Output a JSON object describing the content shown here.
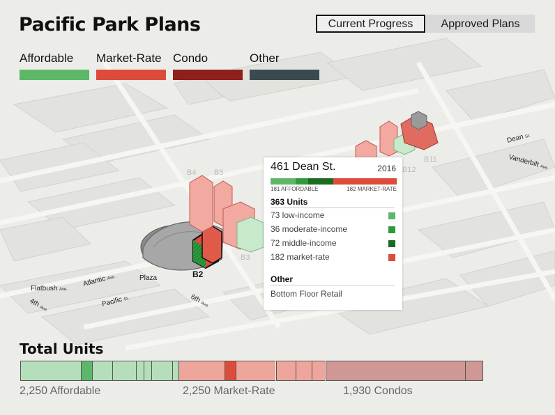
{
  "header": {
    "title": "Pacific Park Plans"
  },
  "toggle": {
    "current": "Current Progress",
    "approved": "Approved Plans"
  },
  "legend": [
    {
      "label": "Affordable",
      "color": "#5cb868"
    },
    {
      "label": "Market-Rate",
      "color": "#dd4b3b"
    },
    {
      "label": "Condo",
      "color": "#8e1f1a"
    },
    {
      "label": "Other",
      "color": "#3a4a50"
    }
  ],
  "map": {
    "buildings": {
      "b2": "B2",
      "b3": "B3",
      "b4": "B4",
      "b5": "B5",
      "b11": "B11",
      "b12": "B12"
    },
    "streets": {
      "flatbush": "Flatbush",
      "flatbush_suffix": "Ave.",
      "atlantic": "Atlantic",
      "atlantic_suffix": "Ave.",
      "pacific": "Pacific",
      "pacific_suffix": "St.",
      "fourth": "4th",
      "fourth_suffix": "Ave.",
      "sixth": "6th",
      "sixth_suffix": "Ave.",
      "dean": "Dean",
      "dean_suffix": "St.",
      "vanderbilt": "Vanderbilt",
      "vanderbilt_suffix": "Ave.",
      "plaza": "Plaza"
    }
  },
  "tooltip": {
    "address": "461 Dean St.",
    "year": "2016",
    "affordable_label": "181 AFFORDABLE",
    "market_label": "182 MARKET-RATE",
    "units": "363 Units",
    "rows": [
      {
        "label": "73 low-income",
        "color": "#5cb868"
      },
      {
        "label": "36 moderate-income",
        "color": "#2e9a3c"
      },
      {
        "label": "72 middle-income",
        "color": "#1a6a22"
      },
      {
        "label": "182 market-rate",
        "color": "#dd4b3b"
      }
    ],
    "other_heading": "Other",
    "other_value": "Bottom Floor Retail"
  },
  "totals": {
    "title": "Total Units",
    "affordable": "2,250 Affordable",
    "market": "2,250 Market-Rate",
    "condos": "1,930 Condos",
    "segments": [
      {
        "units": 363,
        "color": "#b4dfba"
      },
      {
        "units": 70,
        "color": "#5cb868"
      },
      {
        "units": 120,
        "color": "#b4dfba"
      },
      {
        "units": 145,
        "color": "#b4dfba"
      },
      {
        "units": 45,
        "color": "#b4dfba"
      },
      {
        "units": 47,
        "color": "#b4dfba"
      },
      {
        "units": 125,
        "color": "#b4dfba"
      },
      {
        "units": 37,
        "color": "#b4dfba"
      },
      {
        "units": 275,
        "color": "#eea59c"
      },
      {
        "units": 70,
        "color": "#dd4b3b"
      },
      {
        "units": 240,
        "color": "#eea59c"
      },
      {
        "units": 118,
        "color": "#eea59c"
      },
      {
        "units": 100,
        "color": "#eea59c"
      },
      {
        "units": 80,
        "color": "#eea59c"
      },
      {
        "units": 840,
        "color": "#cf9894"
      },
      {
        "units": 110,
        "color": "#cf9894"
      }
    ]
  }
}
